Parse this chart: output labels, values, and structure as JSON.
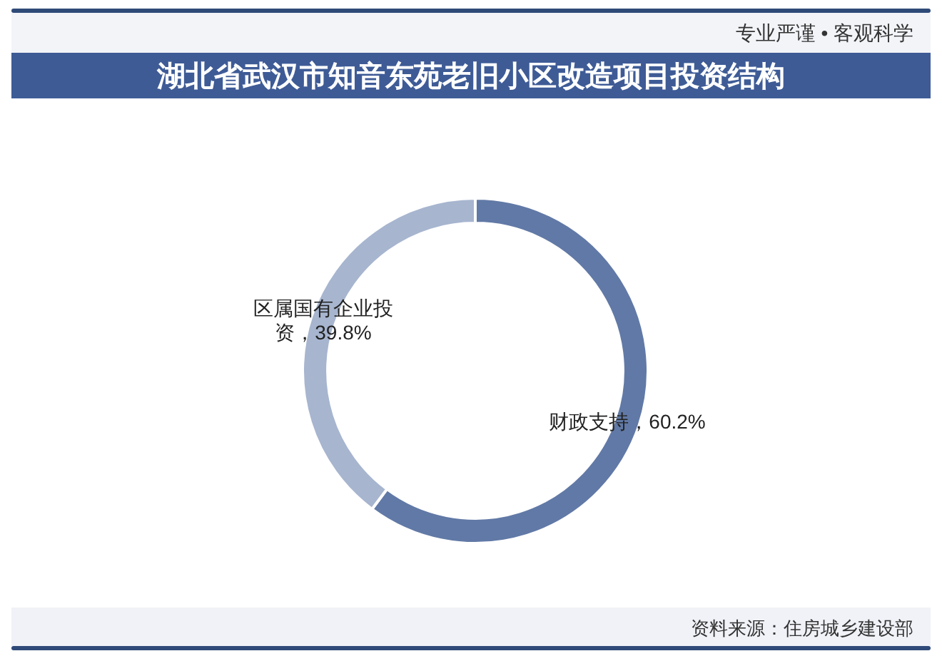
{
  "chart_data": {
    "type": "donut",
    "title": "湖北省武汉市知音东苑老旧小区改造项目投资结构",
    "categories": [
      "财政支持",
      "区属国有企业投资"
    ],
    "values": [
      60.2,
      39.8
    ],
    "colors": [
      "#6179a6",
      "#a7b5cf"
    ],
    "value_labels": [
      "，60.2%",
      "，39.8%"
    ],
    "annotations": [
      "专业严谨 • 客观科学",
      "资料来源：住房城乡建设部"
    ]
  }
}
